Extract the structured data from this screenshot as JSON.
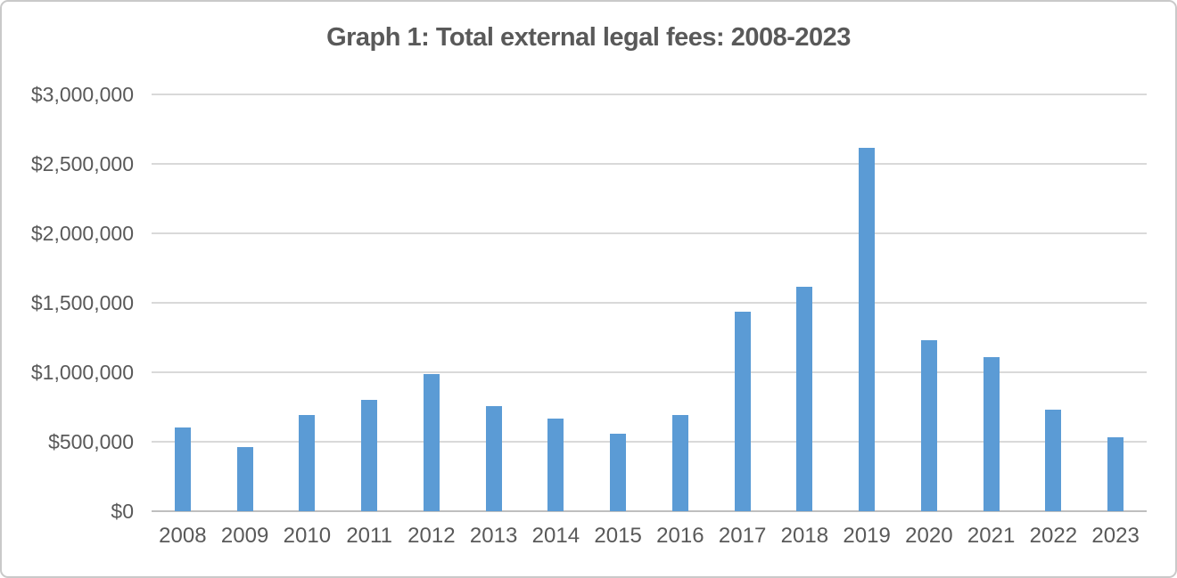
{
  "frame": {
    "background": "#ffffff",
    "border_color": "#c9c9c9"
  },
  "chart_data": {
    "type": "bar",
    "title": "Graph 1: Total external legal fees: 2008-2023",
    "xlabel": "",
    "ylabel": "",
    "categories": [
      "2008",
      "2009",
      "2010",
      "2011",
      "2012",
      "2013",
      "2014",
      "2015",
      "2016",
      "2017",
      "2018",
      "2019",
      "2020",
      "2021",
      "2022",
      "2023"
    ],
    "values": [
      605000,
      460000,
      690000,
      800000,
      990000,
      755000,
      665000,
      555000,
      695000,
      1435000,
      1615000,
      2615000,
      1230000,
      1110000,
      730000,
      530000
    ],
    "ylim": [
      0,
      3000000
    ],
    "y_ticks": [
      {
        "value": 0,
        "label": "$0"
      },
      {
        "value": 500000,
        "label": "$500,000"
      },
      {
        "value": 1000000,
        "label": "$1,000,000"
      },
      {
        "value": 1500000,
        "label": "$1,500,000"
      },
      {
        "value": 2000000,
        "label": "$2,000,000"
      },
      {
        "value": 2500000,
        "label": "$2,500,000"
      },
      {
        "value": 3000000,
        "label": "$3,000,000"
      }
    ],
    "grid": "horizontal",
    "legend": "none",
    "bar_color": "#5b9bd5",
    "text_color": "#595959",
    "gridline_color": "#d9d9d9",
    "axis_line_color": "#bfbfbf"
  }
}
